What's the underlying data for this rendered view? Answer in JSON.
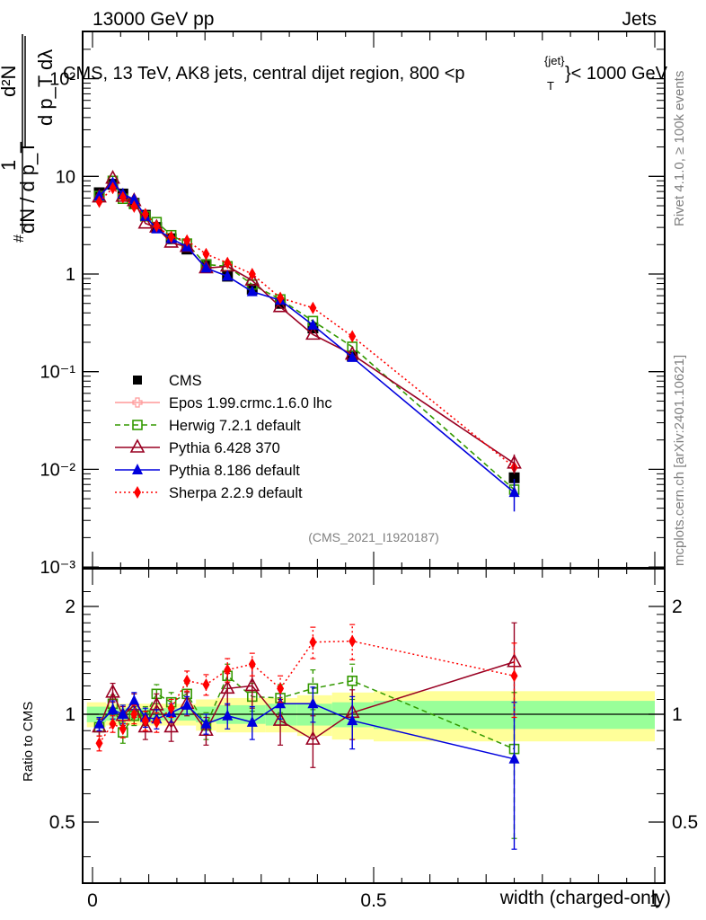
{
  "header": {
    "left_label": "13000 GeV pp",
    "right_label": "Jets"
  },
  "side_labels": {
    "rivet": "Rivet 4.1.0, ≥ 100k events",
    "mcplots": "mcplots.cern.ch [arXiv:2401.10621]"
  },
  "chart_data": [
    {
      "type": "line",
      "panel": "main",
      "title": "CMS, 13 TeV, AK8 jets, central dijet region, 800 <p_T^{jet}< 1000 GeV",
      "title_parts": {
        "main": "CMS, 13 TeV, AK8 jets, central dijet region, 800 <p",
        "sup": "{jet}",
        "sub": "T",
        "tail": "}< 1000 GeV"
      },
      "ylabel": "1/dN/dp_T  d²N/dp_T dλ",
      "ylabel_parts": {
        "num": "d²N",
        "den": "d p_T dλ",
        "outer_num": "1",
        "outer_den": "dN / d p_T"
      },
      "yscale": "log",
      "ylim": [
        0.001,
        200
      ],
      "yticks": [
        {
          "v": 0.001,
          "label": "10⁻³"
        },
        {
          "v": 0.01,
          "label": "10⁻²"
        },
        {
          "v": 0.1,
          "label": "10⁻¹"
        },
        {
          "v": 1,
          "label": "1"
        },
        {
          "v": 10,
          "label": "10"
        },
        {
          "v": 100,
          "label": "10²"
        }
      ],
      "xlim": [
        -0.02,
        1.02
      ],
      "x": [
        0.012,
        0.036,
        0.054,
        0.074,
        0.094,
        0.114,
        0.14,
        0.168,
        0.202,
        0.24,
        0.284,
        0.334,
        0.392,
        0.462,
        0.75
      ],
      "series": [
        {
          "name": "CMS",
          "style": "data",
          "color": "#000000",
          "marker": "square-filled",
          "values": [
            6.8,
            8.3,
            6.6,
            5.3,
            4.0,
            3.0,
            2.3,
            1.8,
            1.25,
            0.95,
            0.7,
            0.5,
            0.28,
            0.145,
            0.0082
          ]
        },
        {
          "name": "Epos 1.99.crmc.1.6.0 lhc",
          "style": "solid",
          "color": "#ff9999",
          "marker": "cross-open",
          "values": []
        },
        {
          "name": "Herwig 7.2.1 default",
          "style": "dashed",
          "color": "#339900",
          "marker": "square-open",
          "values": [
            6.3,
            9.0,
            5.9,
            5.2,
            3.9,
            3.4,
            2.5,
            2.05,
            1.25,
            1.2,
            0.78,
            0.55,
            0.33,
            0.18,
            0.0062
          ]
        },
        {
          "name": "Pythia 6.428 370",
          "style": "solid",
          "color": "#990022",
          "marker": "triangle-open",
          "values": [
            6.1,
            9.5,
            6.2,
            5.6,
            3.3,
            3.0,
            2.1,
            1.9,
            1.15,
            1.2,
            0.86,
            0.46,
            0.24,
            0.15,
            0.0115
          ]
        },
        {
          "name": "Pythia 8.186 default",
          "style": "solid",
          "color": "#0000dd",
          "marker": "triangle-filled",
          "values": [
            6.3,
            8.6,
            6.6,
            5.8,
            3.9,
            2.9,
            2.3,
            1.9,
            1.15,
            0.95,
            0.66,
            0.54,
            0.3,
            0.14,
            0.0058
          ]
        },
        {
          "name": "Sherpa 2.2.9 default",
          "style": "dotted",
          "color": "#ff0000",
          "marker": "diamond-filled",
          "values": [
            5.5,
            7.6,
            6.1,
            4.9,
            4.1,
            3.1,
            2.4,
            2.2,
            1.6,
            1.3,
            1.0,
            0.57,
            0.45,
            0.23,
            0.0105
          ]
        }
      ],
      "annotation": "(CMS_2021_I1920187)",
      "legend_position": "center-left"
    },
    {
      "type": "line",
      "panel": "ratio",
      "ylabel": "Ratio to CMS",
      "xlabel": "width (charged-only)",
      "yscale": "log",
      "ylim": [
        0.4,
        2.4
      ],
      "yticks": [
        {
          "v": 0.5,
          "label": "0.5"
        },
        {
          "v": 1,
          "label": "1"
        },
        {
          "v": 2,
          "label": "2"
        }
      ],
      "xlim": [
        -0.02,
        1.02
      ],
      "xticks": [
        {
          "v": 0,
          "label": "0"
        },
        {
          "v": 0.5,
          "label": "0.5"
        },
        {
          "v": 1,
          "label": "1"
        }
      ],
      "x": [
        0.012,
        0.036,
        0.054,
        0.074,
        0.094,
        0.114,
        0.14,
        0.168,
        0.202,
        0.24,
        0.284,
        0.334,
        0.392,
        0.462,
        0.75
      ],
      "bands": {
        "edges": [
          -0.01,
          0.024,
          0.046,
          0.064,
          0.084,
          0.104,
          0.126,
          0.154,
          0.184,
          0.22,
          0.262,
          0.308,
          0.364,
          0.426,
          0.5,
          1.0
        ],
        "inner": [
          0.05,
          0.04,
          0.04,
          0.04,
          0.04,
          0.04,
          0.04,
          0.04,
          0.05,
          0.06,
          0.06,
          0.07,
          0.07,
          0.08,
          0.09
        ],
        "outer": [
          0.08,
          0.07,
          0.07,
          0.07,
          0.07,
          0.07,
          0.07,
          0.07,
          0.1,
          0.11,
          0.11,
          0.11,
          0.13,
          0.15,
          0.16
        ],
        "inner_color": "#99ff99",
        "outer_color": "#ffff99"
      },
      "series": [
        {
          "name": "Herwig 7.2.1 default",
          "color": "#339900",
          "style": "dashed",
          "marker": "square-open",
          "values": [
            0.92,
            1.07,
            0.89,
            0.99,
            0.99,
            1.14,
            1.08,
            1.14,
            0.93,
            1.28,
            1.12,
            1.11,
            1.18,
            1.24,
            0.8
          ],
          "err": [
            0.05,
            0.06,
            0.06,
            0.06,
            0.06,
            0.07,
            0.07,
            0.08,
            0.08,
            0.1,
            0.1,
            0.1,
            0.15,
            0.14,
            0.35
          ]
        },
        {
          "name": "Pythia 6.428 370",
          "color": "#990022",
          "style": "solid",
          "marker": "triangle-open",
          "values": [
            0.92,
            1.15,
            0.99,
            1.06,
            0.92,
            1.06,
            0.92,
            1.07,
            0.9,
            1.18,
            1.2,
            0.96,
            0.85,
            1.01,
            1.4
          ],
          "err": [
            0.05,
            0.07,
            0.06,
            0.08,
            0.07,
            0.08,
            0.08,
            0.08,
            0.08,
            0.12,
            0.16,
            0.14,
            0.14,
            0.16,
            0.4
          ]
        },
        {
          "name": "Pythia 8.186 default",
          "color": "#0000dd",
          "style": "solid",
          "marker": "triangle-filled",
          "values": [
            0.94,
            1.03,
            1.0,
            1.09,
            0.98,
            0.97,
            1.01,
            1.06,
            0.94,
            0.99,
            0.95,
            1.07,
            1.07,
            0.96,
            0.75
          ],
          "err": [
            0.04,
            0.06,
            0.06,
            0.06,
            0.06,
            0.06,
            0.06,
            0.06,
            0.06,
            0.08,
            0.1,
            0.1,
            0.12,
            0.16,
            0.33
          ]
        },
        {
          "name": "Sherpa 2.2.9 default",
          "color": "#ff0000",
          "style": "dotted",
          "marker": "diamond-filled",
          "values": [
            0.83,
            0.94,
            0.91,
            1.0,
            0.96,
            0.95,
            1.04,
            1.24,
            1.21,
            1.33,
            1.38,
            1.18,
            1.59,
            1.6,
            1.28
          ],
          "err": [
            0.04,
            0.05,
            0.05,
            0.06,
            0.06,
            0.06,
            0.06,
            0.08,
            0.08,
            0.1,
            0.1,
            0.1,
            0.16,
            0.18,
            0.3
          ]
        }
      ]
    }
  ]
}
